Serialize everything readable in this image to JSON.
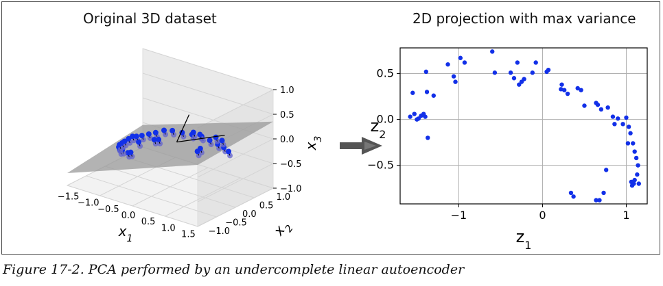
{
  "caption": "Figure 17-2. PCA performed by an undercomplete linear autoencoder",
  "colors": {
    "points": "#1230e8",
    "points_shadow": "#6666cc",
    "plane": "#999999",
    "grid": "#b0b0b0",
    "arrow": "#555555"
  },
  "arrow_icon": "right-arrow-icon",
  "chart_data": [
    {
      "type": "scatter3d",
      "title": "Original 3D dataset",
      "xlabel": "x1",
      "ylabel": "x2",
      "zlabel": "x3",
      "xticks": [
        "−1.5",
        "−1.0",
        "−0.5",
        "0.0",
        "0.5",
        "1.0",
        "1.5"
      ],
      "yticks": [
        "−1.0",
        "−0.5",
        "0.0",
        "0.5",
        "1.0"
      ],
      "zticks": [
        "−1.0",
        "−0.5",
        "0.0",
        "0.5",
        "1.0"
      ],
      "xlim": [
        -1.8,
        1.8
      ],
      "ylim": [
        -1.3,
        1.3
      ],
      "zlim": [
        -1.0,
        1.0
      ],
      "plane": true,
      "points": [
        [
          -1.45,
          -0.35,
          -0.75
        ],
        [
          -1.4,
          -0.1,
          -0.6
        ],
        [
          -1.35,
          0.05,
          -0.55
        ],
        [
          -1.3,
          0.15,
          -0.45
        ],
        [
          -1.2,
          0.25,
          -0.35
        ],
        [
          -1.05,
          0.35,
          -0.25
        ],
        [
          -0.9,
          0.45,
          -0.15
        ],
        [
          -0.75,
          0.5,
          -0.05
        ],
        [
          -0.6,
          0.55,
          0.05
        ],
        [
          -0.45,
          0.6,
          0.1
        ],
        [
          -0.3,
          0.6,
          0.15
        ],
        [
          -0.15,
          0.55,
          0.2
        ],
        [
          0.0,
          0.5,
          0.25
        ],
        [
          0.15,
          0.4,
          0.3
        ],
        [
          0.3,
          0.3,
          0.3
        ],
        [
          0.45,
          0.15,
          0.25
        ],
        [
          0.6,
          0.0,
          0.2
        ],
        [
          0.75,
          -0.15,
          0.15
        ],
        [
          0.85,
          -0.3,
          0.05
        ],
        [
          0.95,
          -0.45,
          -0.05
        ],
        [
          1.0,
          -0.6,
          -0.15
        ],
        [
          1.05,
          -0.7,
          -0.25
        ],
        [
          0.8,
          0.2,
          0.35
        ],
        [
          0.9,
          0.1,
          0.3
        ],
        [
          1.1,
          -0.2,
          0.2
        ],
        [
          1.15,
          -0.35,
          0.1
        ],
        [
          -1.25,
          -0.2,
          -0.65
        ],
        [
          -0.55,
          0.4,
          -0.1
        ],
        [
          0.2,
          0.65,
          0.2
        ],
        [
          -0.2,
          0.3,
          0.0
        ],
        [
          0.55,
          -0.35,
          -0.2
        ],
        [
          0.35,
          -0.5,
          -0.35
        ]
      ]
    },
    {
      "type": "scatter",
      "title": "2D projection with max variance",
      "xlabel": "z1",
      "ylabel": "z2",
      "xlim": [
        -1.7,
        1.25
      ],
      "ylim": [
        -0.92,
        0.78
      ],
      "xticks": [
        -1,
        0,
        1
      ],
      "yticks": [
        -0.5,
        0.0,
        0.5
      ],
      "xtick_labels": [
        "−1",
        "0",
        "1"
      ],
      "ytick_labels": [
        "−0.5",
        "0.0",
        "0.5"
      ],
      "grid": true,
      "points": [
        [
          -1.58,
          0.03
        ],
        [
          -1.55,
          0.29
        ],
        [
          -1.53,
          0.06
        ],
        [
          -1.5,
          0.0
        ],
        [
          -1.48,
          0.01
        ],
        [
          -1.45,
          0.04
        ],
        [
          -1.42,
          0.06
        ],
        [
          -1.4,
          0.03
        ],
        [
          -1.39,
          0.52
        ],
        [
          -1.38,
          0.3
        ],
        [
          -1.37,
          -0.2
        ],
        [
          -1.3,
          0.26
        ],
        [
          -1.13,
          0.6
        ],
        [
          -1.06,
          0.47
        ],
        [
          -1.04,
          0.41
        ],
        [
          -0.98,
          0.67
        ],
        [
          -0.93,
          0.62
        ],
        [
          -0.6,
          0.74
        ],
        [
          -0.57,
          0.51
        ],
        [
          -0.38,
          0.51
        ],
        [
          -0.34,
          0.45
        ],
        [
          -0.3,
          0.62
        ],
        [
          -0.28,
          0.38
        ],
        [
          -0.25,
          0.41
        ],
        [
          -0.22,
          0.44
        ],
        [
          -0.12,
          0.51
        ],
        [
          -0.08,
          0.62
        ],
        [
          0.05,
          0.52
        ],
        [
          0.07,
          0.54
        ],
        [
          0.22,
          0.33
        ],
        [
          0.23,
          0.38
        ],
        [
          0.26,
          0.32
        ],
        [
          0.3,
          0.28
        ],
        [
          0.42,
          0.34
        ],
        [
          0.46,
          0.32
        ],
        [
          0.5,
          0.15
        ],
        [
          0.64,
          0.18
        ],
        [
          0.66,
          0.16
        ],
        [
          0.7,
          0.11
        ],
        [
          0.78,
          0.13
        ],
        [
          0.84,
          0.03
        ],
        [
          0.86,
          -0.05
        ],
        [
          0.9,
          0.01
        ],
        [
          0.96,
          -0.05
        ],
        [
          1.0,
          0.02
        ],
        [
          1.03,
          -0.08
        ],
        [
          1.05,
          -0.15
        ],
        [
          1.08,
          -0.26
        ],
        [
          1.1,
          -0.35
        ],
        [
          1.12,
          -0.42
        ],
        [
          1.14,
          -0.5
        ],
        [
          1.13,
          -0.6
        ],
        [
          1.1,
          -0.66
        ],
        [
          1.09,
          -0.7
        ],
        [
          1.07,
          -0.72
        ],
        [
          1.06,
          -0.68
        ],
        [
          0.76,
          -0.55
        ],
        [
          0.73,
          -0.8
        ],
        [
          0.68,
          -0.88
        ],
        [
          0.64,
          -0.88
        ],
        [
          0.34,
          -0.8
        ],
        [
          0.37,
          -0.84
        ],
        [
          1.15,
          -0.7
        ],
        [
          1.02,
          -0.26
        ]
      ]
    }
  ]
}
